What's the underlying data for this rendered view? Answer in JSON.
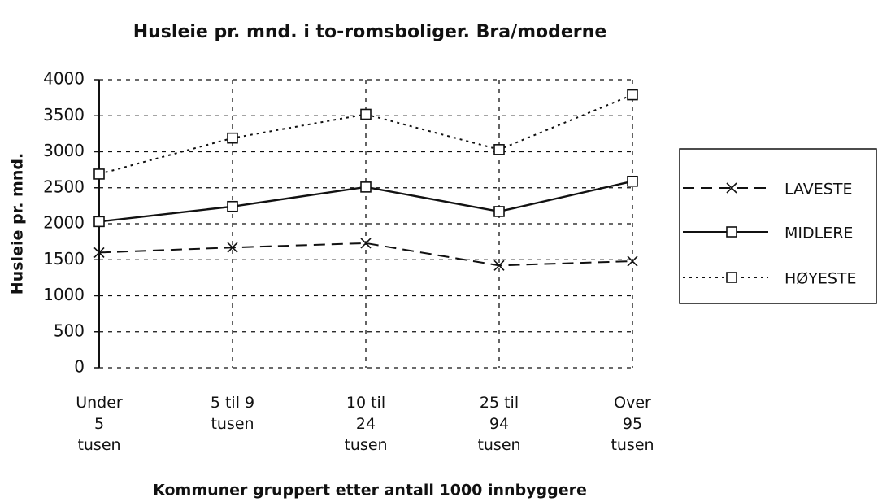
{
  "chart_data": {
    "type": "line",
    "title": "Husleie pr. mnd. i to-romsboliger. Bra/moderne",
    "x_label": "Kommuner gruppert etter antall 1000 innbyggere",
    "y_label": "Husleie pr. mnd.",
    "categories": [
      "Under\n5\ntusen",
      "5 til 9\ntusen",
      "10 til\n24\ntusen",
      "25 til\n94\ntusen",
      "Over\n95\ntusen"
    ],
    "series": [
      {
        "name": "LAVESTE",
        "color": "#111111",
        "dash": "14 8",
        "marker": "x",
        "values": [
          1600,
          1670,
          1730,
          1420,
          1480
        ]
      },
      {
        "name": "MIDLERE",
        "color": "#111111",
        "dash": "none",
        "marker": "square",
        "values": [
          2030,
          2240,
          2510,
          2170,
          2590
        ]
      },
      {
        "name": "HØYESTE",
        "color": "#111111",
        "dash": "3 5",
        "marker": "square",
        "values": [
          2690,
          3190,
          3520,
          3030,
          3790
        ]
      }
    ],
    "ylim": [
      0,
      4000
    ],
    "yticks": [
      0,
      500,
      1000,
      1500,
      2000,
      2500,
      3000,
      3500,
      4000
    ],
    "grid": true,
    "legend": "right"
  }
}
